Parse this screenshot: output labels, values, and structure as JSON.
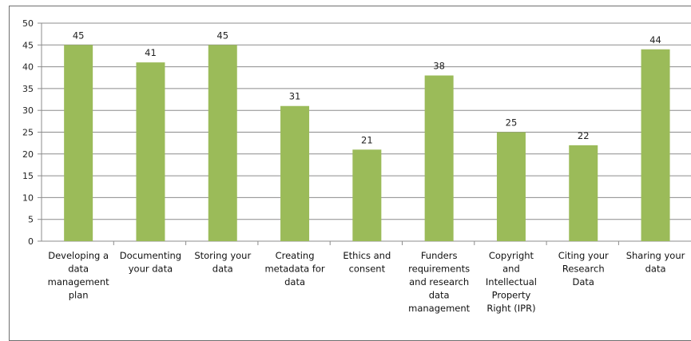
{
  "chart_data": {
    "type": "bar",
    "title": "",
    "xlabel": "",
    "ylabel": "",
    "ylim": [
      0,
      50
    ],
    "yticks": [
      0,
      5,
      10,
      15,
      20,
      25,
      30,
      35,
      40,
      45,
      50
    ],
    "grid": true,
    "legend": "none",
    "bar_color": "#9bbb59",
    "grid_color": "#8c8c8c",
    "categories": [
      [
        "Developing a",
        "data",
        "management",
        "plan"
      ],
      [
        "Documenting",
        "your data"
      ],
      [
        "Storing your",
        "data"
      ],
      [
        "Creating",
        "metadata for",
        "data"
      ],
      [
        "Ethics and",
        "consent"
      ],
      [
        "Funders",
        "requirements",
        "and research",
        "data",
        "management"
      ],
      [
        "Copyright",
        "and",
        "Intellectual",
        "Property",
        "Right (IPR)"
      ],
      [
        "Citing your",
        "Research",
        "Data"
      ],
      [
        "Sharing your",
        "data"
      ]
    ],
    "values": [
      45,
      41,
      45,
      31,
      21,
      38,
      25,
      22,
      44
    ]
  }
}
